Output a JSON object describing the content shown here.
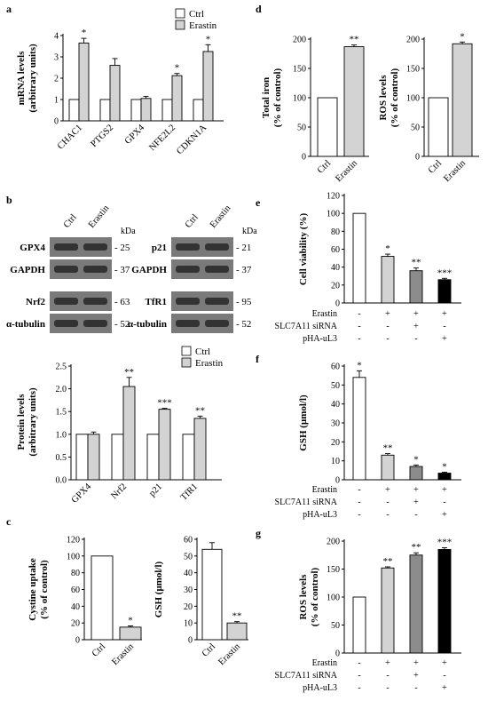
{
  "colors": {
    "ctrl": "#ffffff",
    "erastin": "#d3d3d3",
    "mid_grey": "#8c8c8c",
    "black": "#000000",
    "band_bg": "#7a7a7a",
    "band_dark": "#222222"
  },
  "panel_labels": [
    "a",
    "b",
    "c",
    "d",
    "e",
    "f",
    "g"
  ],
  "panel_a": {
    "legend": [
      "Ctrl",
      "Erastin"
    ],
    "ylabel_line1": "mRNA levels",
    "ylabel_line2": "(arbitrary units)",
    "yticks": [
      "0",
      "1",
      "2",
      "3",
      "4"
    ]
  },
  "panel_b": {
    "blot1": {
      "lanes": [
        "Ctrl",
        "Erastin"
      ],
      "kda": "kDa",
      "rows": [
        {
          "label": "GPX4",
          "mw": "- 25"
        },
        {
          "label": "GAPDH",
          "mw": "- 37"
        },
        {
          "label": "Nrf2",
          "mw": "- 63"
        },
        {
          "label": "α-tubulin",
          "mw": "- 52"
        }
      ]
    },
    "blot2": {
      "lanes": [
        "Ctrl",
        "Erastin"
      ],
      "kda": "kDa",
      "rows": [
        {
          "label": "p21",
          "mw": "- 21"
        },
        {
          "label": "GAPDH",
          "mw": "- 37"
        },
        {
          "label": "TfR1",
          "mw": "- 95"
        },
        {
          "label": "α-tubulin",
          "mw": "- 52"
        }
      ]
    },
    "legend": [
      "Ctrl",
      "Erastin"
    ],
    "ylabel_line1": "Protein levels",
    "ylabel_line2": "(arbitrary units)",
    "yticks": [
      "0.0",
      "0.5",
      "1.0",
      "1.5",
      "2.0",
      "2.5"
    ]
  },
  "panel_c": {
    "left": {
      "ylabel_line1": "Cystine uptake",
      "ylabel_line2": "(% of control)",
      "yticks": [
        "0",
        "20",
        "40",
        "60",
        "80",
        "100",
        "120"
      ]
    },
    "right": {
      "ylabel_line1": "GSH (μmol/l)",
      "yticks": [
        "0",
        "10",
        "20",
        "30",
        "40",
        "50",
        "60"
      ]
    }
  },
  "panel_d": {
    "left": {
      "ylabel_line1": "Total iron",
      "ylabel_line2": "(% of control)",
      "yticks": [
        "0",
        "50",
        "100",
        "150",
        "200"
      ]
    },
    "right": {
      "ylabel_line1": "ROS levels",
      "ylabel_line2": "(% of control)",
      "yticks": [
        "0",
        "50",
        "100",
        "150",
        "200"
      ]
    }
  },
  "panel_e": {
    "ylabel_line1": "Cell viability  (%)",
    "yticks": [
      "0",
      "20",
      "40",
      "60",
      "80",
      "100",
      "120"
    ],
    "treatment_rows": [
      {
        "label": "Erastin",
        "signs": [
          "-",
          "+",
          "+",
          "+"
        ]
      },
      {
        "label": "SLC7A11 siRNA",
        "signs": [
          "-",
          "-",
          "+",
          "-"
        ]
      },
      {
        "label": "pHA-uL3",
        "signs": [
          "-",
          "-",
          "-",
          "+"
        ]
      }
    ]
  },
  "panel_f": {
    "ylabel_line1": "GSH  (μmol/l)",
    "yticks": [
      "0",
      "10",
      "20",
      "30",
      "40",
      "50",
      "60"
    ],
    "treatment_rows": [
      {
        "label": "Erastin",
        "signs": [
          "-",
          "+",
          "+",
          "+"
        ]
      },
      {
        "label": "SLC7A11 siRNA",
        "signs": [
          "-",
          "-",
          "+",
          "-"
        ]
      },
      {
        "label": "pHA-uL3",
        "signs": [
          "-",
          "-",
          "-",
          "+"
        ]
      }
    ]
  },
  "panel_g": {
    "ylabel_line1": "ROS levels",
    "ylabel_line2": "(% of control)",
    "yticks": [
      "0",
      "50",
      "100",
      "150",
      "200"
    ],
    "treatment_rows": [
      {
        "label": "Erastin",
        "signs": [
          "-",
          "+",
          "+",
          "+"
        ]
      },
      {
        "label": "SLC7A11 siRNA",
        "signs": [
          "-",
          "-",
          "+",
          "-"
        ]
      },
      {
        "label": "pHA-uL3",
        "signs": [
          "-",
          "-",
          "-",
          "+"
        ]
      }
    ]
  },
  "chart_data": [
    {
      "id": "a",
      "type": "bar",
      "categories": [
        "CHAC1",
        "PTGS2",
        "GPX4",
        "NFE2L2",
        "CDKN1A"
      ],
      "series": [
        {
          "name": "Ctrl",
          "values": [
            1,
            1,
            1,
            1,
            1
          ],
          "errors": [
            0,
            0,
            0,
            0,
            0
          ],
          "sig": [
            "",
            "",
            "",
            "",
            ""
          ]
        },
        {
          "name": "Erastin",
          "values": [
            3.65,
            2.6,
            1.05,
            2.12,
            3.25
          ],
          "errors": [
            0.22,
            0.32,
            0.1,
            0.1,
            0.32
          ],
          "sig": [
            "*",
            "",
            "",
            "*",
            "*"
          ]
        }
      ],
      "ylim": [
        0,
        4
      ],
      "ylabel": "mRNA levels (arbitrary units)"
    },
    {
      "id": "b",
      "type": "bar",
      "categories": [
        "GPX4",
        "Nrf2",
        "p21",
        "TfR1"
      ],
      "series": [
        {
          "name": "Ctrl",
          "values": [
            1,
            1,
            1,
            1
          ],
          "errors": [
            0,
            0,
            0,
            0
          ],
          "sig": [
            "",
            "",
            "",
            ""
          ]
        },
        {
          "name": "Erastin",
          "values": [
            1.0,
            2.05,
            1.55,
            1.35
          ],
          "errors": [
            0.05,
            0.2,
            0.02,
            0.05
          ],
          "sig": [
            "",
            "**",
            "***",
            "**"
          ]
        }
      ],
      "ylim": [
        0,
        2.5
      ],
      "ylabel": "Protein levels (arbitrary units)"
    },
    {
      "id": "c-left",
      "type": "bar",
      "categories": [
        "Ctrl",
        "Erastin"
      ],
      "values": [
        100,
        15
      ],
      "errors": [
        0,
        1.5
      ],
      "sig": [
        "",
        "*"
      ],
      "ylim": [
        0,
        120
      ],
      "ylabel": "Cystine uptake (% of control)"
    },
    {
      "id": "c-right",
      "type": "bar",
      "categories": [
        "Ctrl",
        "Erastin"
      ],
      "values": [
        54,
        10
      ],
      "errors": [
        4,
        0.8
      ],
      "sig": [
        "",
        "**"
      ],
      "ylim": [
        0,
        60
      ],
      "ylabel": "GSH (μmol/l)"
    },
    {
      "id": "d-left",
      "type": "bar",
      "categories": [
        "Ctrl",
        "Erastin"
      ],
      "values": [
        100,
        187
      ],
      "errors": [
        0,
        3
      ],
      "sig": [
        "",
        "**"
      ],
      "ylim": [
        0,
        200
      ],
      "ylabel": "Total iron (% of control)"
    },
    {
      "id": "d-right",
      "type": "bar",
      "categories": [
        "Ctrl",
        "Erastin"
      ],
      "values": [
        100,
        192
      ],
      "errors": [
        0,
        3
      ],
      "sig": [
        "",
        "*"
      ],
      "ylim": [
        0,
        200
      ],
      "ylabel": "ROS levels (% of control)"
    },
    {
      "id": "e",
      "type": "bar",
      "categories": [
        "1",
        "2",
        "3",
        "4"
      ],
      "values": [
        100,
        52,
        36,
        26
      ],
      "errors": [
        0,
        2.5,
        3,
        1.5
      ],
      "sig": [
        "",
        "*",
        "**",
        "***"
      ],
      "ylim": [
        0,
        120
      ],
      "ylabel": "Cell viability (%)"
    },
    {
      "id": "f",
      "type": "bar",
      "categories": [
        "1",
        "2",
        "3",
        "4"
      ],
      "values": [
        54,
        13,
        7,
        3.5
      ],
      "errors": [
        3.5,
        0.8,
        0.8,
        0.5
      ],
      "sig": [
        "*",
        "**",
        "*",
        "*"
      ],
      "ylim": [
        0,
        60
      ],
      "ylabel": "GSH (μmol/l)"
    },
    {
      "id": "g",
      "type": "bar",
      "categories": [
        "1",
        "2",
        "3",
        "4"
      ],
      "values": [
        100,
        152,
        175,
        185
      ],
      "errors": [
        0,
        2,
        4,
        3
      ],
      "sig": [
        "",
        "**",
        "**",
        "***"
      ],
      "ylim": [
        0,
        200
      ],
      "ylabel": "ROS levels (% of control)"
    }
  ]
}
